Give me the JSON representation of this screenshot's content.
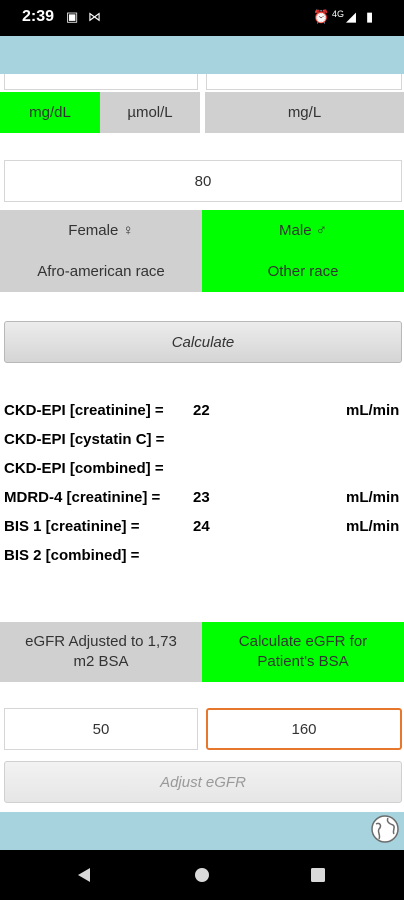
{
  "status_bar": {
    "time": "2:39",
    "network": "4G",
    "icons": [
      "photo-icon",
      "sim-icon",
      "alarm-icon",
      "signal-icon",
      "battery-icon"
    ]
  },
  "units": {
    "mgdl_label": "mg/dL",
    "umoll_label": "µmol/L",
    "mgl_label": "mg/L",
    "selected": "mg/dL"
  },
  "age_field": {
    "value": "80"
  },
  "sex": {
    "female": "Female ♀",
    "male": "Male ♂",
    "selected": "Male ♂"
  },
  "race": {
    "afro": "Afro-american race",
    "other": "Other race",
    "selected": "Other race"
  },
  "calculate_button": "Calculate",
  "results": [
    {
      "label": "CKD-EPI [creatinine] =",
      "value": "22",
      "unit": "mL/min"
    },
    {
      "label": "CKD-EPI [cystatin C] =",
      "value": "",
      "unit": ""
    },
    {
      "label": "CKD-EPI [combined] =",
      "value": "",
      "unit": ""
    },
    {
      "label": "MDRD-4 [creatinine] =",
      "value": "23",
      "unit": "mL/min"
    },
    {
      "label": "BIS 1 [creatinine] =",
      "value": "24",
      "unit": "mL/min"
    },
    {
      "label": "BIS 2 [combined] =",
      "value": "",
      "unit": ""
    }
  ],
  "egfr_mode": {
    "adjusted": "eGFR Adjusted to 1,73 m2 BSA",
    "patient": "Calculate eGFR for Patient's BSA",
    "selected": "Calculate eGFR for Patient's BSA"
  },
  "weight_field": {
    "value": "50"
  },
  "height_field": {
    "value": "160"
  },
  "adjust_button": "Adjust eGFR",
  "colors": {
    "accent_green": "#00ff00",
    "header_blue": "#a7d3df",
    "focus_orange": "#e8772e"
  }
}
